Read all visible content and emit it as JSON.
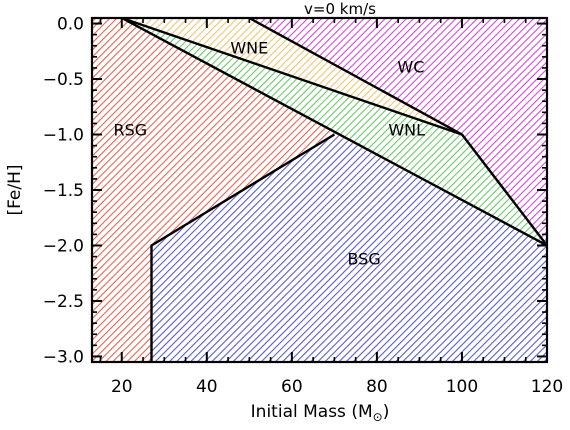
{
  "chart_data": {
    "type": "area",
    "title": "v=0 km/s",
    "xlabel": "Initial Mass (M",
    "xlabel_symbol": "⊙",
    "xlabel_close": ")",
    "ylabel": "[Fe/H]",
    "xlim": [
      13,
      120
    ],
    "ylim": [
      -3.05,
      0.05
    ],
    "xticks": [
      20,
      40,
      60,
      80,
      100,
      120
    ],
    "xtick_labels": [
      "20",
      "40",
      "60",
      "80",
      "100",
      "120"
    ],
    "yticks": [
      0.0,
      -0.5,
      -1.0,
      -1.5,
      -2.0,
      -2.5,
      -3.0
    ],
    "ytick_labels": [
      "0.0",
      "−0.5",
      "−1.0",
      "−1.5",
      "−2.0",
      "−2.5",
      "−3.0"
    ],
    "regions": [
      {
        "name": "RSG",
        "color": "#d9685c",
        "polygon": [
          [
            13,
            0.05
          ],
          [
            20,
            0.05
          ],
          [
            120,
            -2.0
          ],
          [
            70,
            -1.0
          ],
          [
            27,
            -2.0
          ],
          [
            27,
            -3.05
          ],
          [
            13,
            -3.05
          ]
        ],
        "label_pos": [
          22,
          -0.97
        ]
      },
      {
        "name": "WNE",
        "color": "#e9c77a",
        "polygon": [
          [
            20,
            0.05
          ],
          [
            50,
            0.05
          ],
          [
            100,
            -1.0
          ]
        ],
        "label_pos": [
          50,
          -0.23
        ]
      },
      {
        "name": "WC",
        "color": "#cc4fcc",
        "polygon": [
          [
            50,
            0.05
          ],
          [
            120,
            0.05
          ],
          [
            120,
            -2.0
          ],
          [
            100,
            -1.0
          ]
        ],
        "label_pos": [
          88,
          -0.4
        ]
      },
      {
        "name": "WNL",
        "color": "#6fc46f",
        "polygon": [
          [
            20,
            0.05
          ],
          [
            100,
            -1.0
          ],
          [
            120,
            -2.0
          ]
        ],
        "label_pos": [
          87,
          -0.97
        ]
      },
      {
        "name": "BSG",
        "color": "#5c5fb8",
        "polygon": [
          [
            27,
            -2.0
          ],
          [
            70,
            -1.0
          ],
          [
            120,
            -2.0
          ],
          [
            120,
            -3.05
          ],
          [
            27,
            -3.05
          ]
        ],
        "label_pos": [
          77,
          -2.13
        ]
      }
    ],
    "boundaries": [
      [
        [
          27,
          -3.05
        ],
        [
          27,
          -2.0
        ],
        [
          70,
          -1.0
        ]
      ],
      [
        [
          20,
          0.05
        ],
        [
          120,
          -2.0
        ]
      ],
      [
        [
          20,
          0.05
        ],
        [
          100,
          -1.0
        ]
      ],
      [
        [
          50,
          0.05
        ],
        [
          100,
          -1.0
        ],
        [
          120,
          -2.0
        ]
      ]
    ],
    "grid": false,
    "legend": "none"
  }
}
